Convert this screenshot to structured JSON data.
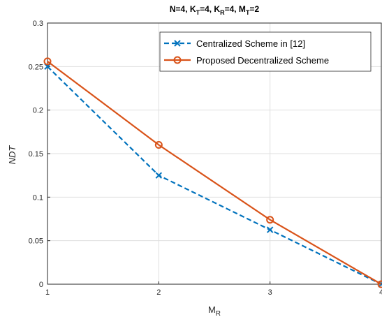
{
  "chart_data": {
    "type": "line",
    "title": {
      "parts": [
        {
          "text": "N=4, K",
          "sub": false
        },
        {
          "text": "T",
          "sub": true
        },
        {
          "text": "=4, K",
          "sub": false
        },
        {
          "text": "R",
          "sub": true
        },
        {
          "text": "=4, M",
          "sub": false
        },
        {
          "text": "T",
          "sub": true
        },
        {
          "text": "=2",
          "sub": false
        }
      ]
    },
    "xlabel": {
      "main": "M",
      "sub": "R"
    },
    "ylabel": "NDT",
    "xlim": [
      1,
      4
    ],
    "ylim": [
      0,
      0.3
    ],
    "xticks": [
      1,
      2,
      3,
      4
    ],
    "xtick_labels": [
      "1",
      "2",
      "3",
      "4"
    ],
    "yticks": [
      0,
      0.05,
      0.1,
      0.15,
      0.2,
      0.25,
      0.3
    ],
    "ytick_labels": [
      "0",
      "0.05",
      "0.1",
      "0.15",
      "0.2",
      "0.25",
      "0.3"
    ],
    "grid": true,
    "legend_position": "top-right",
    "x": [
      1,
      2,
      3,
      4
    ],
    "series": [
      {
        "name": "Centralized Scheme in [12]",
        "color": "#0072BD",
        "line_style": "dashed",
        "marker": "x",
        "values": [
          0.25,
          0.125,
          0.0625,
          0
        ]
      },
      {
        "name": "Proposed Decentralized Scheme",
        "color": "#D95319",
        "line_style": "solid",
        "marker": "circle",
        "values": [
          0.256,
          0.16,
          0.074,
          0
        ]
      }
    ]
  }
}
